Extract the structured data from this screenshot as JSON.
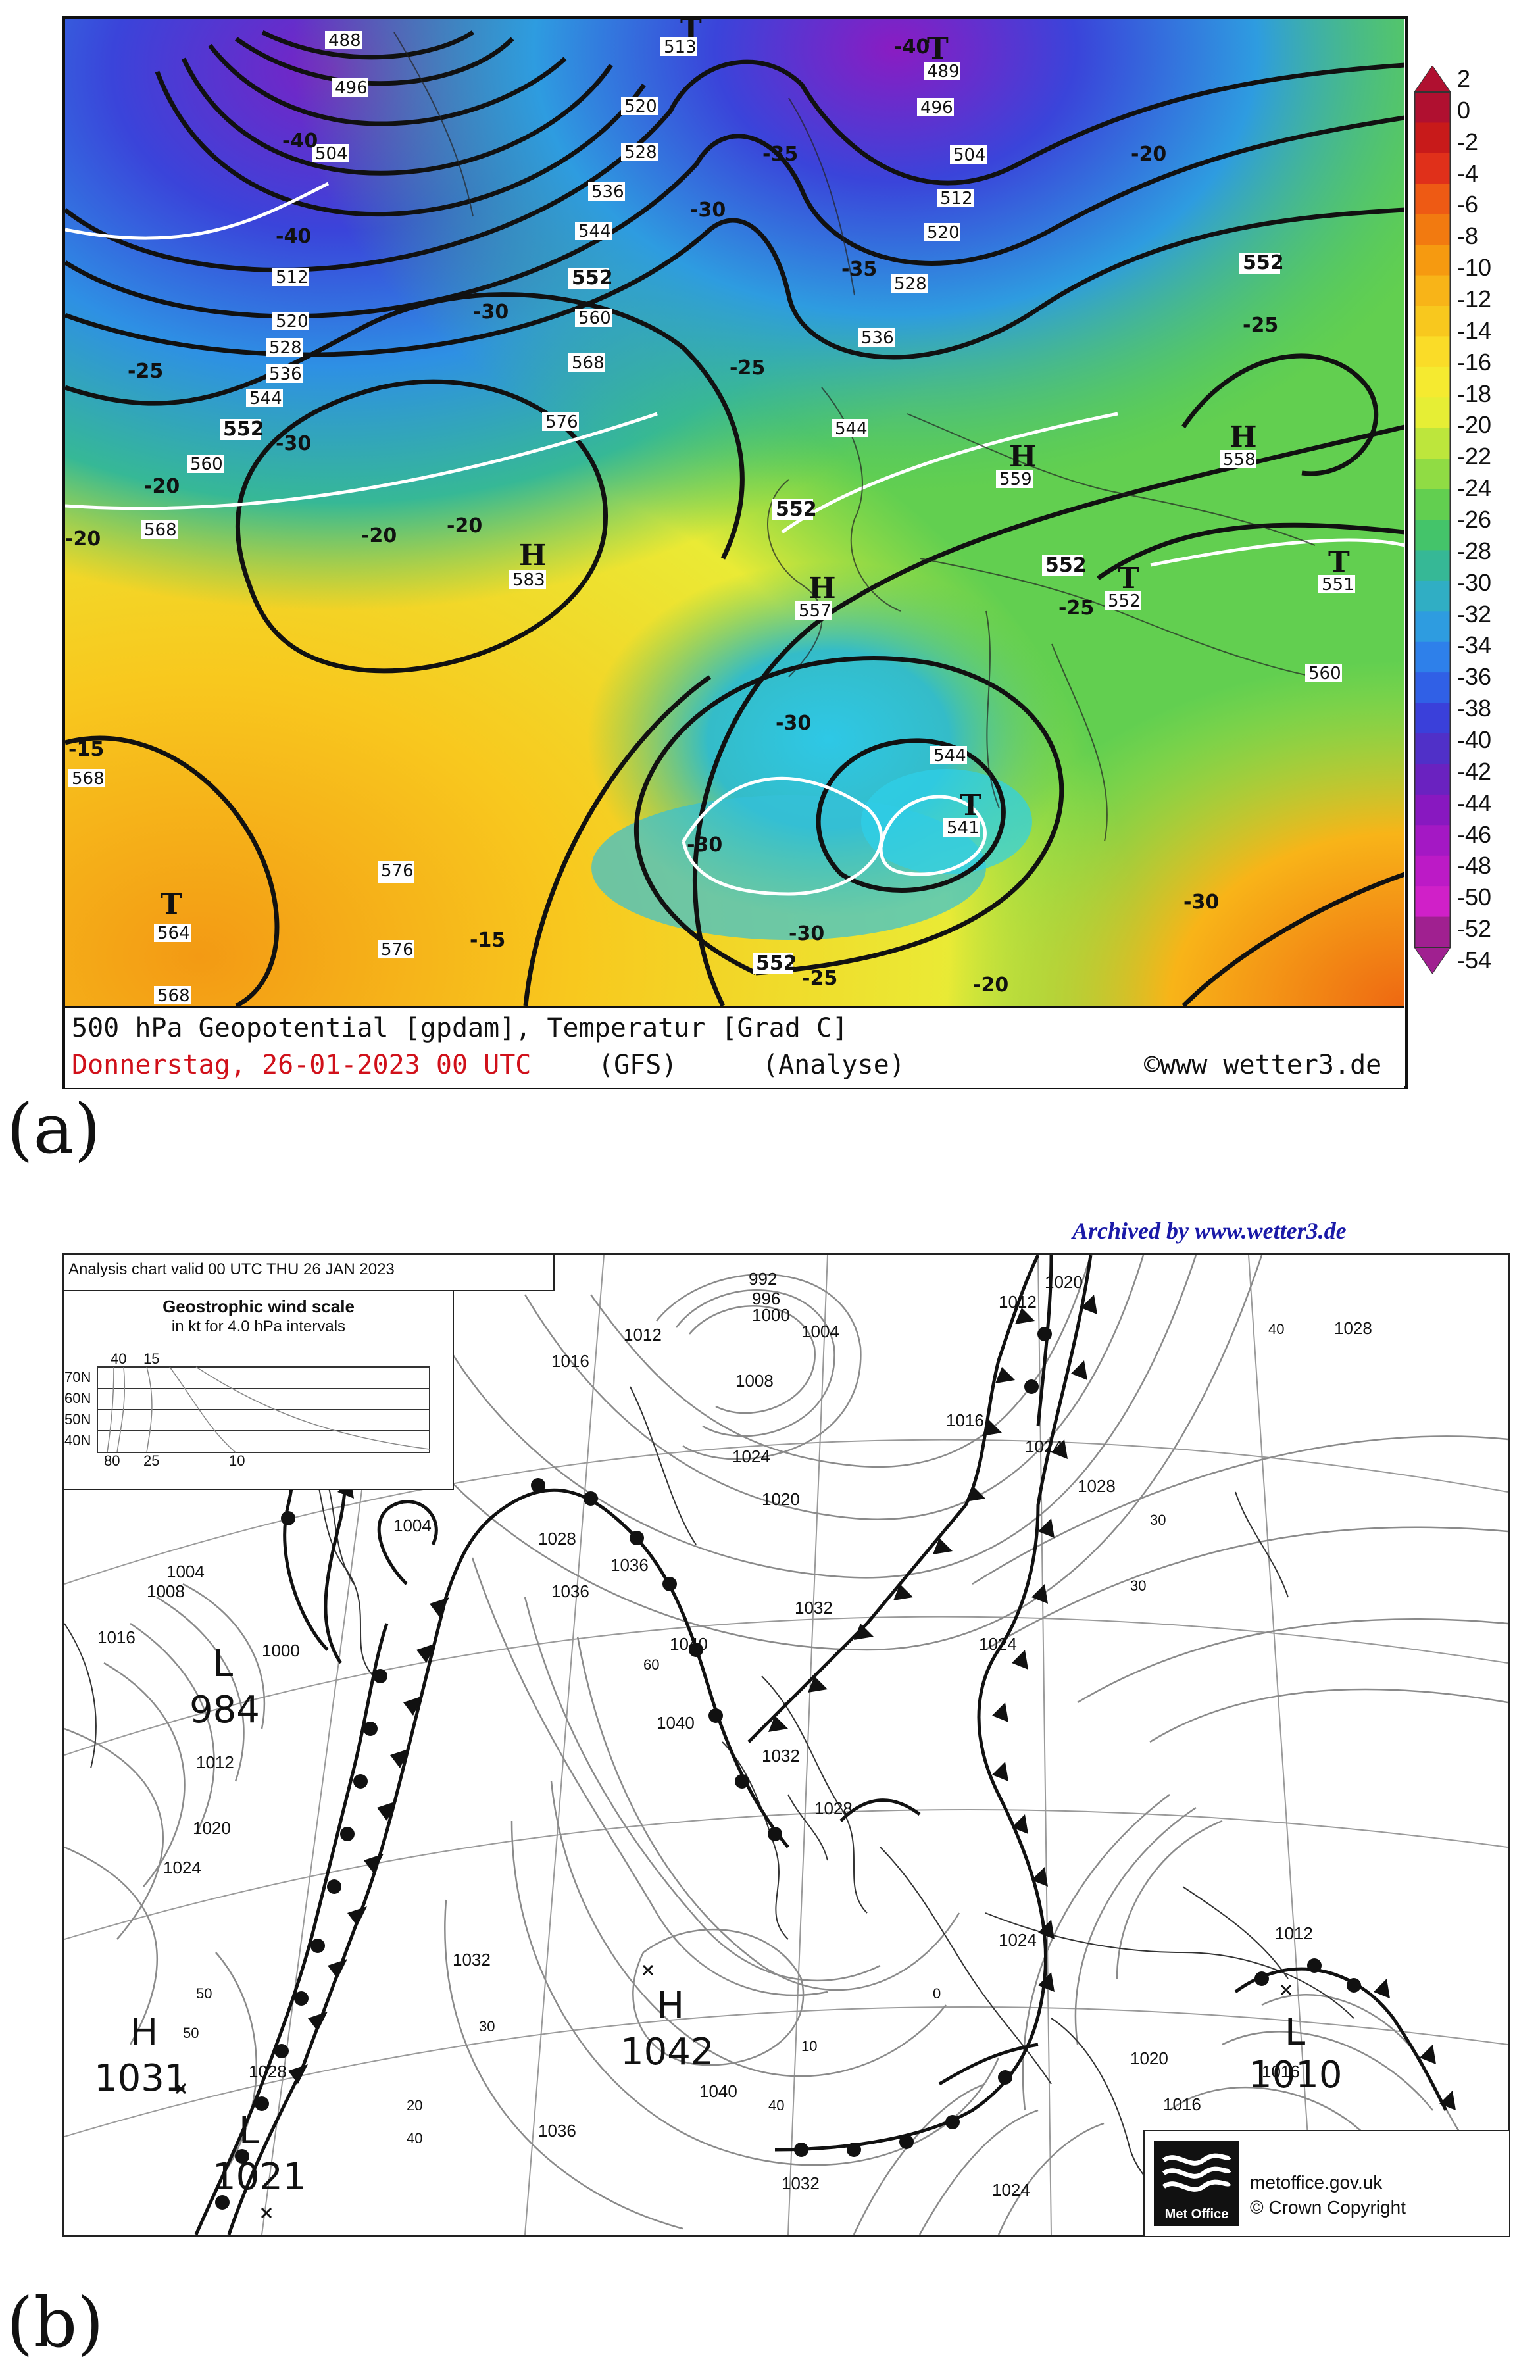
{
  "panel_a": {
    "label": "(a)",
    "footer": {
      "line1": "500 hPa Geopotential [gpdam], Temperatur [Grad C]",
      "line2": "Donnerstag, 26-01-2023  00 UTC",
      "model": "(GFS)",
      "analyse": "(Analyse)",
      "credit": "©www wetter3.de"
    },
    "colorbar_labels": [
      "2",
      "0",
      "-2",
      "-4",
      "-6",
      "-8",
      "-10",
      "-12",
      "-14",
      "-16",
      "-18",
      "-20",
      "-22",
      "-24",
      "-26",
      "-28",
      "-30",
      "-32",
      "-34",
      "-36",
      "-38",
      "-40",
      "-42",
      "-44",
      "-46",
      "-48",
      "-50",
      "-52",
      "-54"
    ],
    "colorbar_colors": [
      "#b01030",
      "#c81a1a",
      "#e0301a",
      "#ee5a14",
      "#f27a10",
      "#f69a10",
      "#f8b418",
      "#f8c81e",
      "#fadc28",
      "#f5ea30",
      "#e6ee35",
      "#bde63c",
      "#90dc44",
      "#62cf50",
      "#44c46a",
      "#36b896",
      "#30aec4",
      "#2e9ce0",
      "#2e80ea",
      "#3060e6",
      "#3a40da",
      "#5030c8",
      "#6a22c0",
      "#8818c0",
      "#a418c4",
      "#bc1ac6",
      "#d020c8",
      "#a02090"
    ],
    "map_labels": [
      {
        "text": "488"
      },
      {
        "text": "496"
      },
      {
        "text": "504"
      },
      {
        "text": "512"
      },
      {
        "text": "520"
      },
      {
        "text": "528"
      },
      {
        "text": "536"
      },
      {
        "text": "544"
      },
      {
        "text": "552"
      },
      {
        "text": "560"
      },
      {
        "text": "568"
      },
      {
        "text": "576"
      },
      {
        "text": "513"
      },
      {
        "text": "520"
      },
      {
        "text": "528"
      },
      {
        "text": "536"
      },
      {
        "text": "544"
      },
      {
        "text": "552"
      },
      {
        "text": "560"
      },
      {
        "text": "568"
      },
      {
        "text": "576"
      },
      {
        "text": "489"
      },
      {
        "text": "496"
      },
      {
        "text": "504"
      },
      {
        "text": "512"
      },
      {
        "text": "520"
      },
      {
        "text": "528"
      },
      {
        "text": "536"
      },
      {
        "text": "544"
      },
      {
        "text": "552"
      },
      {
        "text": "552"
      },
      {
        "text": "552"
      },
      {
        "text": "558"
      },
      {
        "text": "559"
      },
      {
        "text": "557"
      },
      {
        "text": "552"
      },
      {
        "text": "551"
      },
      {
        "text": "560"
      },
      {
        "text": "544"
      },
      {
        "text": "541"
      },
      {
        "text": "552"
      },
      {
        "text": "583"
      },
      {
        "text": "568"
      },
      {
        "text": "576"
      },
      {
        "text": "576"
      },
      {
        "text": "564"
      },
      {
        "text": "568"
      }
    ],
    "centers": [
      {
        "type": "T",
        "value": "513"
      },
      {
        "type": "T",
        "value": "489"
      },
      {
        "type": "H",
        "value": "583"
      },
      {
        "type": "H",
        "value": "559"
      },
      {
        "type": "H",
        "value": "558"
      },
      {
        "type": "H",
        "value": "557"
      },
      {
        "type": "T",
        "value": "552"
      },
      {
        "type": "T",
        "value": "551"
      },
      {
        "type": "T",
        "value": "541"
      },
      {
        "type": "T",
        "value": "564"
      }
    ],
    "temp_labels": [
      "-40",
      "-40",
      "-40",
      "-35",
      "-35",
      "-30",
      "-30",
      "-30",
      "-25",
      "-25",
      "-20",
      "-20",
      "-20",
      "-20",
      "-15",
      "-15",
      "-25",
      "-30",
      "-30",
      "-30",
      "-25",
      "-25",
      "-20",
      "-20",
      "-30"
    ]
  },
  "panel_b": {
    "label": "(b)",
    "archived": "Archived by www.wetter3.de",
    "valid": "Analysis chart  valid 00 UTC THU 26  JAN 2023",
    "wind_title": "Geostrophic wind scale",
    "wind_sub": "in kt for 4.0 hPa intervals",
    "wind_lat": [
      "70N",
      "60N",
      "50N",
      "40N"
    ],
    "wind_top": [
      "40",
      "15"
    ],
    "wind_bottom": [
      "80",
      "25",
      "10"
    ],
    "logo_text": "Met Office",
    "site": "metoffice.gov.uk",
    "copyright": "© Crown Copyright",
    "pressure_centers": [
      {
        "type": "L",
        "value": "984"
      },
      {
        "type": "H",
        "value": "1031"
      },
      {
        "type": "L",
        "value": "1021"
      },
      {
        "type": "H",
        "value": "1042"
      },
      {
        "type": "L",
        "value": "1010"
      }
    ],
    "isobar_labels": [
      "992",
      "996",
      "1000",
      "1004",
      "1008",
      "1012",
      "1016",
      "1020",
      "1024",
      "1028",
      "1032",
      "1036",
      "1040",
      "1012",
      "1016",
      "1020",
      "1024",
      "1028",
      "1004",
      "1000",
      "1008",
      "1004",
      "1012",
      "1016",
      "1020",
      "1024",
      "1028",
      "1032",
      "1036",
      "1040",
      "1032",
      "1028",
      "1024",
      "1012",
      "1016",
      "1020",
      "1024",
      "1028",
      "1012",
      "1016",
      "1024",
      "1032",
      "1036",
      "1040"
    ],
    "lat_labels": [
      "40",
      "30",
      "60",
      "50",
      "30",
      "40",
      "10",
      "0",
      "30",
      "20",
      "40",
      "50"
    ]
  }
}
